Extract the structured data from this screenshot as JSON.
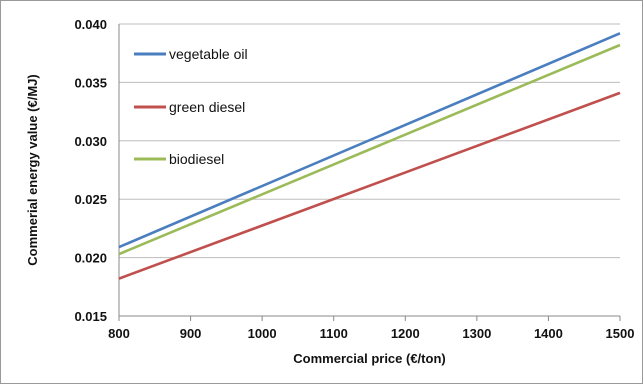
{
  "chart_data": {
    "type": "line",
    "title": "",
    "xlabel": "Commercial price (€/ton)",
    "ylabel": "Commerial energy value (€/MJ)",
    "xlim": [
      800,
      1500
    ],
    "ylim": [
      0.015,
      0.04
    ],
    "x_ticks": [
      800,
      900,
      1000,
      1100,
      1200,
      1300,
      1400,
      1500
    ],
    "y_ticks": [
      "0.015",
      "0.020",
      "0.025",
      "0.030",
      "0.035",
      "0.040"
    ],
    "grid": "horizontal",
    "legend_position": "top-left",
    "x": [
      800,
      1500
    ],
    "series": [
      {
        "name": "vegetable oil",
        "color": "#4a7ebf",
        "values": [
          0.0209,
          0.0392
        ]
      },
      {
        "name": "green diesel",
        "color": "#c0504d",
        "values": [
          0.0182,
          0.0341
        ]
      },
      {
        "name": "biodiesel",
        "color": "#9bbb59",
        "values": [
          0.0203,
          0.0382
        ]
      }
    ]
  }
}
